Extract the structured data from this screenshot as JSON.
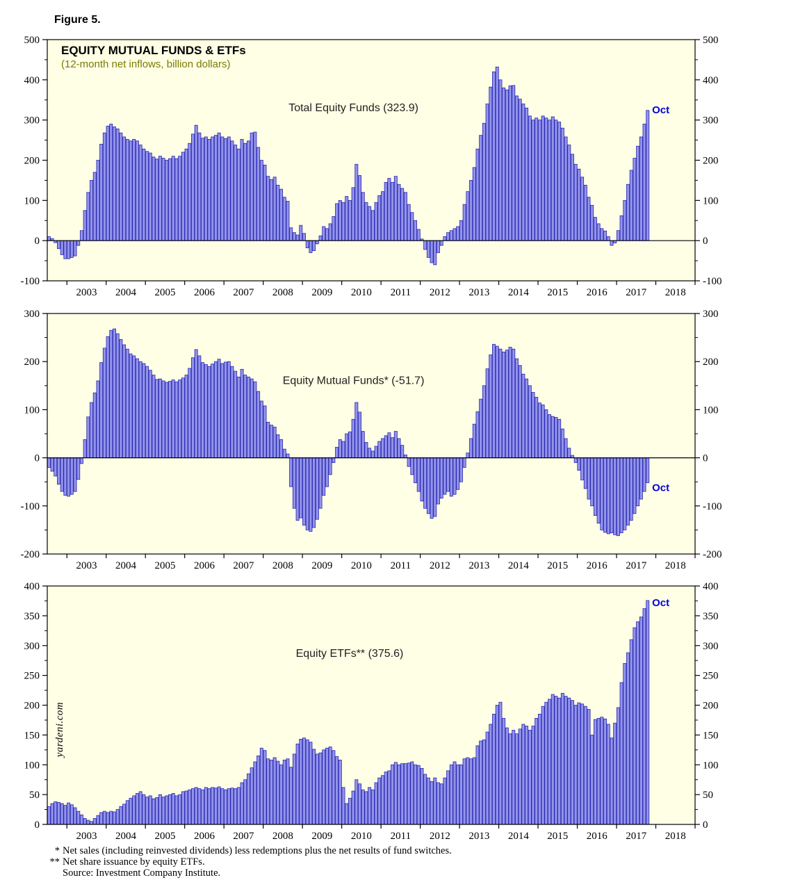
{
  "page": {
    "figure_label": "Figure 5.",
    "watermark": "yardeni.com"
  },
  "colors": {
    "plot_bg": "#ffffe6",
    "bar_fill": "#9393ea",
    "bar_stroke": "#2626b0",
    "frame": "#000000",
    "annotation": "#1f1f1f",
    "subtitle": "#7a7a00",
    "oct_label": "#0000dd"
  },
  "footnotes": [
    {
      "marker": "*",
      "text": "Net sales (including reinvested dividends) less redemptions plus the net results of fund switches."
    },
    {
      "marker": "**",
      "text": "Net share issuance by equity ETFs."
    },
    {
      "marker": "",
      "text": "Source: Investment Company Institute."
    }
  ],
  "chart_data": [
    {
      "type": "bar",
      "title": "Total Equity Funds",
      "header": "EQUITY MUTUAL FUNDS & ETFs",
      "subheader": "(12-month net inflows, billion dollars)",
      "annotation": "Total Equity Funds (323.9)",
      "latest_value": 323.9,
      "last_point_label": "Oct",
      "ylim": [
        -100,
        500
      ],
      "ytick_step": 100,
      "grid": false,
      "start": "2002-07",
      "frequency": "monthly",
      "x_years": [
        "2003",
        "2004",
        "2005",
        "2006",
        "2007",
        "2008",
        "2009",
        "2010",
        "2011",
        "2012",
        "2013",
        "2014",
        "2015",
        "2016",
        "2017",
        "2018"
      ],
      "values": [
        10,
        5,
        -5,
        -20,
        -35,
        -45,
        -45,
        -42,
        -38,
        -12,
        25,
        75,
        120,
        150,
        170,
        200,
        240,
        268,
        285,
        290,
        283,
        278,
        268,
        258,
        252,
        248,
        252,
        248,
        238,
        228,
        222,
        218,
        208,
        203,
        210,
        205,
        200,
        204,
        210,
        204,
        210,
        220,
        228,
        242,
        265,
        287,
        268,
        255,
        258,
        252,
        258,
        262,
        268,
        258,
        254,
        258,
        248,
        238,
        228,
        252,
        242,
        248,
        268,
        270,
        232,
        200,
        188,
        160,
        152,
        158,
        138,
        128,
        108,
        98,
        32,
        20,
        14,
        38,
        18,
        -18,
        -30,
        -25,
        -8,
        12,
        35,
        30,
        42,
        60,
        92,
        100,
        95,
        110,
        100,
        132,
        190,
        162,
        120,
        95,
        85,
        75,
        95,
        112,
        122,
        145,
        155,
        145,
        160,
        140,
        130,
        120,
        90,
        70,
        50,
        28,
        4,
        -22,
        -42,
        -55,
        -60,
        -30,
        -12,
        10,
        20,
        25,
        30,
        35,
        50,
        90,
        122,
        150,
        182,
        228,
        262,
        292,
        340,
        382,
        420,
        432,
        400,
        380,
        375,
        385,
        386,
        360,
        352,
        340,
        330,
        310,
        300,
        305,
        300,
        310,
        305,
        300,
        308,
        300,
        295,
        280,
        258,
        238,
        215,
        190,
        178,
        158,
        138,
        108,
        88,
        58,
        42,
        30,
        24,
        10,
        -12,
        -6,
        25,
        62,
        100,
        140,
        175,
        205,
        235,
        258,
        290,
        323.9
      ]
    },
    {
      "type": "bar",
      "title": "Equity Mutual Funds",
      "annotation": "Equity Mutual Funds* (-51.7)",
      "latest_value": -51.7,
      "last_point_label": "Oct",
      "ylim": [
        -200,
        300
      ],
      "ytick_step": 100,
      "grid": false,
      "start": "2002-07",
      "frequency": "monthly",
      "x_years": [
        "2003",
        "2004",
        "2005",
        "2006",
        "2007",
        "2008",
        "2009",
        "2010",
        "2011",
        "2012",
        "2013",
        "2014",
        "2015",
        "2016",
        "2017",
        "2018"
      ],
      "values": [
        -20,
        -28,
        -38,
        -55,
        -70,
        -78,
        -80,
        -76,
        -70,
        -45,
        -12,
        38,
        85,
        115,
        135,
        160,
        198,
        228,
        252,
        265,
        268,
        258,
        246,
        235,
        226,
        216,
        212,
        206,
        200,
        196,
        190,
        182,
        172,
        163,
        164,
        160,
        157,
        159,
        162,
        158,
        162,
        166,
        172,
        186,
        208,
        225,
        212,
        198,
        194,
        190,
        195,
        200,
        205,
        196,
        199,
        200,
        190,
        180,
        168,
        184,
        172,
        168,
        164,
        158,
        138,
        118,
        108,
        74,
        68,
        64,
        48,
        38,
        18,
        8,
        -60,
        -105,
        -130,
        -125,
        -140,
        -150,
        -153,
        -145,
        -128,
        -105,
        -78,
        -60,
        -35,
        -10,
        22,
        38,
        34,
        50,
        54,
        80,
        115,
        95,
        55,
        32,
        20,
        14,
        24,
        34,
        40,
        46,
        52,
        42,
        55,
        40,
        26,
        6,
        -18,
        -35,
        -52,
        -70,
        -90,
        -105,
        -116,
        -126,
        -122,
        -96,
        -84,
        -76,
        -70,
        -80,
        -76,
        -66,
        -50,
        -20,
        10,
        40,
        70,
        96,
        122,
        150,
        185,
        214,
        236,
        232,
        226,
        220,
        224,
        230,
        226,
        206,
        192,
        174,
        164,
        150,
        136,
        126,
        114,
        110,
        100,
        90,
        86,
        84,
        80,
        60,
        40,
        20,
        5,
        -10,
        -26,
        -46,
        -64,
        -86,
        -100,
        -120,
        -136,
        -150,
        -155,
        -158,
        -156,
        -160,
        -162,
        -156,
        -150,
        -140,
        -130,
        -116,
        -100,
        -86,
        -70,
        -51.7
      ]
    },
    {
      "type": "bar",
      "title": "Equity ETFs",
      "annotation": "Equity ETFs** (375.6)",
      "latest_value": 375.6,
      "last_point_label": "Oct",
      "ylim": [
        0,
        400
      ],
      "ytick_step": 50,
      "grid": false,
      "start": "2002-07",
      "frequency": "monthly",
      "x_years": [
        "2003",
        "2004",
        "2005",
        "2006",
        "2007",
        "2008",
        "2009",
        "2010",
        "2011",
        "2012",
        "2013",
        "2014",
        "2015",
        "2016",
        "2017",
        "2018"
      ],
      "values": [
        30,
        35,
        38,
        37,
        35,
        32,
        36,
        33,
        28,
        22,
        16,
        10,
        7,
        5,
        10,
        15,
        20,
        22,
        20,
        22,
        21,
        25,
        30,
        34,
        40,
        44,
        48,
        52,
        55,
        50,
        46,
        48,
        43,
        45,
        50,
        46,
        48,
        50,
        52,
        48,
        50,
        55,
        56,
        58,
        60,
        62,
        60,
        58,
        62,
        60,
        62,
        61,
        63,
        60,
        58,
        60,
        61,
        60,
        62,
        70,
        75,
        85,
        95,
        105,
        115,
        128,
        124,
        110,
        108,
        112,
        106,
        100,
        108,
        110,
        96,
        118,
        135,
        143,
        145,
        142,
        138,
        126,
        118,
        120,
        125,
        128,
        130,
        124,
        114,
        108,
        62,
        35,
        44,
        56,
        75,
        68,
        58,
        55,
        62,
        58,
        70,
        78,
        82,
        88,
        90,
        100,
        104,
        100,
        102,
        102,
        103,
        105,
        100,
        99,
        94,
        84,
        78,
        72,
        78,
        70,
        68,
        78,
        90,
        100,
        105,
        100,
        100,
        110,
        112,
        110,
        112,
        132,
        140,
        142,
        155,
        168,
        185,
        200,
        205,
        178,
        162,
        152,
        158,
        152,
        160,
        168,
        165,
        158,
        165,
        178,
        185,
        198,
        205,
        210,
        218,
        215,
        212,
        220,
        215,
        212,
        208,
        200,
        204,
        202,
        198,
        193,
        150,
        176,
        178,
        180,
        177,
        168,
        145,
        170,
        196,
        238,
        270,
        288,
        310,
        330,
        340,
        348,
        362,
        375.6
      ]
    }
  ]
}
